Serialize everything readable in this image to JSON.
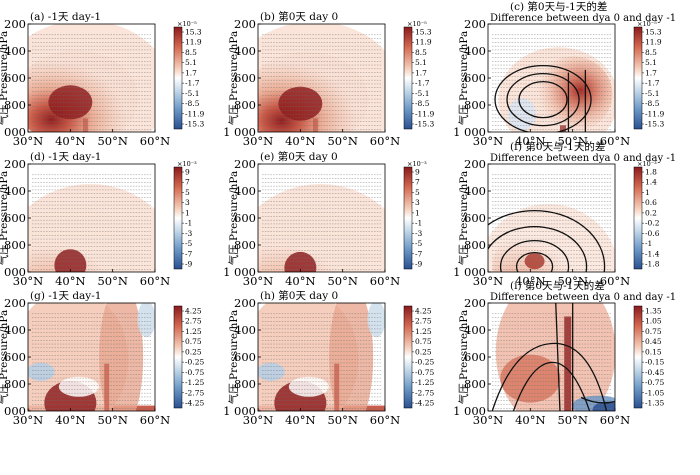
{
  "figure": {
    "ylabel": "气压 Pressure/hPa",
    "y_ticks": [
      "200",
      "400",
      "600",
      "800",
      "1 000"
    ],
    "x_ticks": [
      "30°N",
      "40°N",
      "50°N",
      "60°N"
    ]
  },
  "chart_data": [
    {
      "panel": "a",
      "type": "heatmap",
      "title": "(a) -1天 day-1",
      "xlabel": "",
      "ylabel": "气压 Pressure/hPa",
      "xlim": [
        30,
        60
      ],
      "ylim": [
        1000,
        200
      ],
      "colorbar_exponent": "×10⁻⁵",
      "colorbar_ticks": [
        "15.3",
        "11.9",
        "8.5",
        "5.1",
        "1.7",
        "-1.7",
        "-5.1",
        "-8.5",
        "-11.9",
        "-15.3"
      ],
      "max_center": {
        "lat": 40,
        "pressure": 780
      }
    },
    {
      "panel": "b",
      "type": "heatmap",
      "title": "(b) 第0天 day 0",
      "xlabel": "",
      "ylabel": "气压 Pressure/hPa",
      "xlim": [
        30,
        60
      ],
      "ylim": [
        1000,
        200
      ],
      "colorbar_exponent": "×10⁻⁵",
      "colorbar_ticks": [
        "15.3",
        "11.9",
        "8.5",
        "5.1",
        "1.7",
        "-1.7",
        "-5.1",
        "-8.5",
        "-11.9",
        "-15.3"
      ],
      "max_center": {
        "lat": 40,
        "pressure": 790
      }
    },
    {
      "panel": "c",
      "type": "heatmap",
      "title": "(c) 第0天与-1天的差",
      "subtitle": "Difference between dya 0 and  day -1",
      "xlabel": "",
      "ylabel": "气压 Pressure/hPa",
      "xlim": [
        30,
        60
      ],
      "ylim": [
        1000,
        200
      ],
      "colorbar_exponent": "×10⁻⁵",
      "colorbar_ticks": [
        "15.3",
        "11.9",
        "8.5",
        "5.1",
        "1.7",
        "-1.7",
        "-5.1",
        "-8.5",
        "-11.9",
        "-15.3"
      ],
      "max_center": {
        "lat": 49,
        "pressure": 720
      }
    },
    {
      "panel": "d",
      "type": "heatmap",
      "title": "(d) -1天 day-1",
      "xlabel": "",
      "ylabel": "气压 Pressure/hPa",
      "xlim": [
        30,
        60
      ],
      "ylim": [
        1000,
        200
      ],
      "colorbar_exponent": "×10⁻³",
      "colorbar_ticks": [
        "9",
        "7",
        "5",
        "3",
        "1",
        "-1",
        "-3",
        "-5",
        "-7",
        "-9"
      ],
      "max_center": {
        "lat": 40,
        "pressure": 920
      }
    },
    {
      "panel": "e",
      "type": "heatmap",
      "title": "(e) 第0天 day 0",
      "xlabel": "",
      "ylabel": "气压 Pressure/hPa",
      "xlim": [
        30,
        60
      ],
      "ylim": [
        1000,
        200
      ],
      "colorbar_exponent": "×10⁻³",
      "colorbar_ticks": [
        "9",
        "7",
        "5",
        "3",
        "1",
        "-1",
        "-3",
        "-5",
        "-7",
        "-9"
      ],
      "max_center": {
        "lat": 40,
        "pressure": 940
      }
    },
    {
      "panel": "f",
      "type": "heatmap",
      "title": "(f) 第0天与-1天的差",
      "subtitle": "Difference between dya 0 and  day -1",
      "xlabel": "",
      "ylabel": "气压 Pressure/hPa",
      "xlim": [
        30,
        60
      ],
      "ylim": [
        1000,
        200
      ],
      "colorbar_exponent": "×10⁻³",
      "colorbar_ticks": [
        "1.8",
        "1.4",
        "1",
        "0.6",
        "0.2",
        "-0.2",
        "-0.6",
        "-1",
        "-1.4",
        "-1.8"
      ],
      "max_center": {
        "lat": 41,
        "pressure": 920
      }
    },
    {
      "panel": "g",
      "type": "heatmap",
      "title": "(g) -1天 day-1",
      "xlabel": "",
      "ylabel": "气压 Pressure/hPa",
      "xlim": [
        30,
        60
      ],
      "ylim": [
        1000,
        200
      ],
      "colorbar_ticks": [
        "4.25",
        "2.75",
        "1.25",
        "0.75",
        "0.25",
        "-0.25",
        "-0.75",
        "-1.25",
        "-2.75",
        "-4.25"
      ],
      "max_center": {
        "lat": 40,
        "pressure": 950
      }
    },
    {
      "panel": "h",
      "type": "heatmap",
      "title": "(h) 第0天 day 0",
      "xlabel": "",
      "ylabel": "气压 Pressure/hPa",
      "xlim": [
        30,
        60
      ],
      "ylim": [
        1000,
        200
      ],
      "colorbar_ticks": [
        "4.25",
        "2.75",
        "1.25",
        "0.75",
        "0.25",
        "-0.25",
        "-0.75",
        "-1.25",
        "-2.75",
        "-4.25"
      ],
      "max_center": {
        "lat": 40,
        "pressure": 950
      }
    },
    {
      "panel": "i",
      "type": "heatmap",
      "title": "(i) 第0天与-1天的差",
      "subtitle": "Difference between dya 0 and  day -1",
      "xlabel": "",
      "ylabel": "气压 Pressure/hPa",
      "xlim": [
        30,
        60
      ],
      "ylim": [
        1000,
        200
      ],
      "colorbar_ticks": [
        "1.35",
        "1.05",
        "0.75",
        "0.45",
        "0.15",
        "-0.15",
        "-0.45",
        "-0.75",
        "-1.05",
        "-1.35"
      ],
      "max_center": {
        "lat": 49,
        "pressure": 400
      }
    }
  ]
}
